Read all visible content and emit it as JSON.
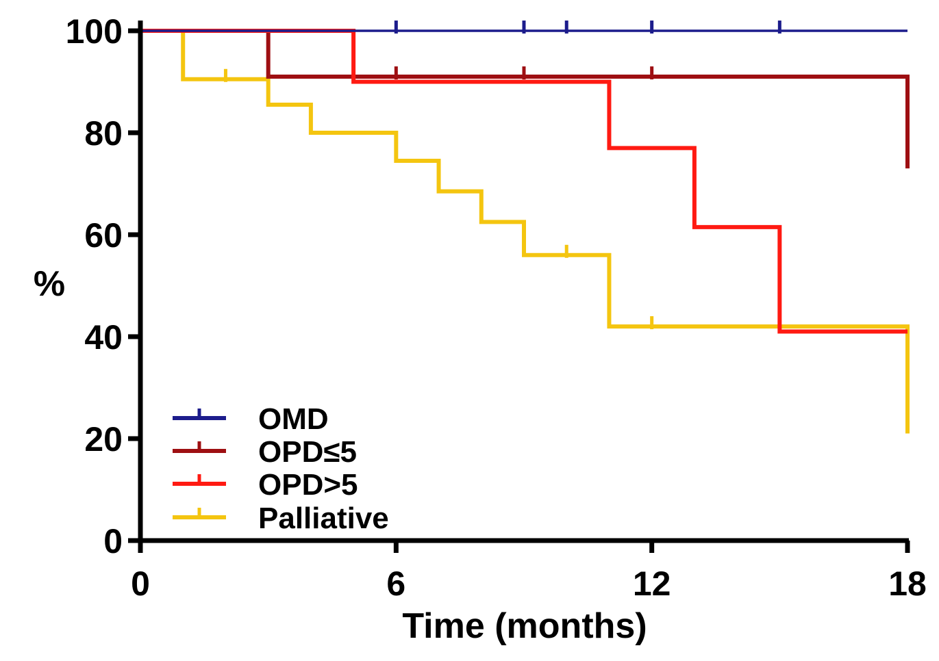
{
  "chart_data": {
    "type": "line",
    "subtype": "kaplan-meier step curve",
    "title": "",
    "xlabel": "Time (months)",
    "ylabel": "%",
    "xlim": [
      0,
      18
    ],
    "ylim": [
      0,
      100
    ],
    "x_ticks": [
      "0",
      "6",
      "12",
      "18"
    ],
    "y_ticks": [
      "0",
      "20",
      "40",
      "60",
      "80",
      "100"
    ],
    "grid": false,
    "legend_position": "bottom-left",
    "series": [
      {
        "name": "OMD",
        "color": "#1c1c8c",
        "steps": [
          [
            0,
            100
          ],
          [
            18,
            100
          ]
        ],
        "censor_marks": [
          [
            6,
            100
          ],
          [
            9,
            100
          ],
          [
            10,
            100
          ],
          [
            12,
            100
          ],
          [
            15,
            100
          ]
        ]
      },
      {
        "name": "OPD≤5",
        "color": "#9e0f12",
        "steps": [
          [
            0,
            100
          ],
          [
            3,
            91
          ],
          [
            18,
            73
          ]
        ],
        "censor_marks": [
          [
            6,
            91
          ],
          [
            9,
            91
          ],
          [
            12,
            91
          ]
        ]
      },
      {
        "name": "OPD>5",
        "color": "#ff1a12",
        "steps": [
          [
            0,
            100
          ],
          [
            5,
            90
          ],
          [
            11,
            77
          ],
          [
            13,
            61.5
          ],
          [
            15,
            41
          ],
          [
            18,
            41
          ]
        ],
        "censor_marks": []
      },
      {
        "name": "Palliative",
        "color": "#f4c510",
        "steps": [
          [
            0,
            100
          ],
          [
            1,
            90.5
          ],
          [
            3,
            85.5
          ],
          [
            4,
            80
          ],
          [
            6,
            74.5
          ],
          [
            7,
            68.5
          ],
          [
            8,
            62.5
          ],
          [
            9,
            56
          ],
          [
            11,
            42
          ],
          [
            18,
            21
          ]
        ],
        "censor_marks": [
          [
            2,
            90.5
          ],
          [
            10,
            56
          ],
          [
            12,
            42
          ]
        ]
      }
    ]
  }
}
